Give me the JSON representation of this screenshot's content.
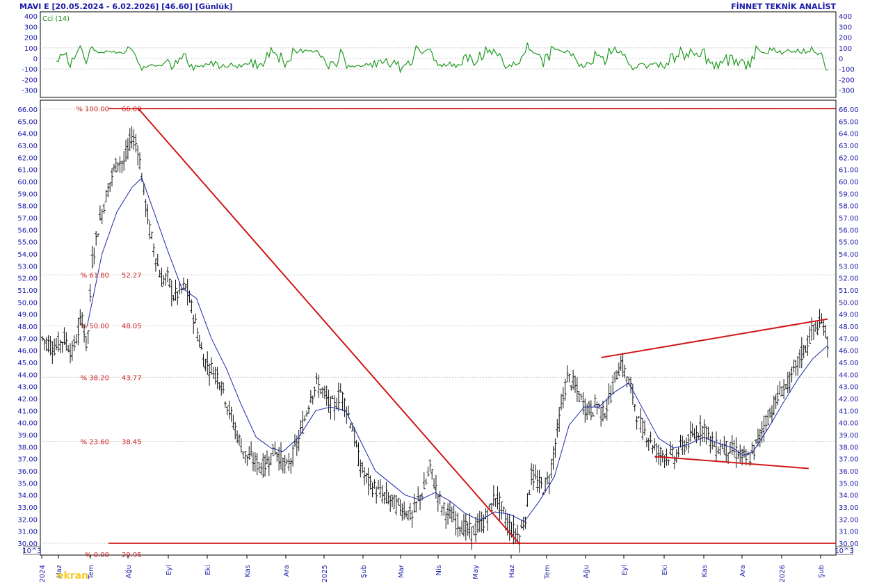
{
  "header": {
    "title": "MAVI  E  [20.05.2024 - 6.02.2026]  [46.60]  [Günlük]",
    "provider": "FİNNET TEKNİK ANALİST"
  },
  "indicator": {
    "name": "Cci (14)",
    "ticks": [
      "400",
      "300",
      "200",
      "100",
      "0",
      "-100",
      "-200",
      "-300"
    ],
    "tick_values": [
      400,
      300,
      200,
      100,
      0,
      -100,
      -200,
      -300
    ],
    "range": [
      -380,
      410
    ]
  },
  "scale_note": "10^3",
  "price_ticks": [
    "66.00",
    "65.00",
    "64.00",
    "63.00",
    "62.00",
    "61.00",
    "60.00",
    "59.00",
    "58.00",
    "57.00",
    "56.00",
    "55.00",
    "54.00",
    "53.00",
    "52.00",
    "51.00",
    "50.00",
    "49.00",
    "48.00",
    "47.00",
    "46.00",
    "45.00",
    "44.00",
    "43.00",
    "42.00",
    "41.00",
    "40.00",
    "39.00",
    "38.00",
    "37.00",
    "36.00",
    "35.00",
    "34.00",
    "33.00",
    "32.00",
    "31.00",
    "30.00"
  ],
  "x_labels": [
    "2024",
    "Haz",
    "Tem",
    "Ağu",
    "Eyl",
    "Eki",
    "Kas",
    "Ara",
    "2025",
    "Şub",
    "Mar",
    "Nis",
    "May",
    "Haz",
    "Tem",
    "Ağu",
    "Eyl",
    "Eki",
    "Kas",
    "Ara",
    "2026",
    "Şub"
  ],
  "fibonacci": [
    {
      "pct": "% 100.00",
      "value": "66.08",
      "level": 66.08
    },
    {
      "pct": "% 61.80",
      "value": "52.27",
      "level": 52.27
    },
    {
      "pct": "% 50.00",
      "value": "48.05",
      "level": 48.05
    },
    {
      "pct": "% 38.20",
      "value": "43.77",
      "level": 43.77
    },
    {
      "pct": "% 23.60",
      "value": "38.45",
      "level": 38.45
    },
    {
      "pct": "% 0.00",
      "value": "29.95",
      "level": 29.95
    }
  ],
  "watermark": "ekran",
  "colors": {
    "axis_text": "#1a1aa8",
    "cci": "#1f9a1f",
    "price_bars": "#111111",
    "moving_average": "#1a2aa8",
    "trendline": "#d01818",
    "grid": "#b8b8b8"
  },
  "chart_data": {
    "type": "line",
    "title": "MAVI  E  [20.05.2024 - 6.02.2026]  [46.60]  [Günlük]",
    "ylim": [
      29.6,
      66.6
    ],
    "series": [
      {
        "name": "MAVI E",
        "points": [
          [
            0,
            47.0
          ],
          [
            12,
            46.2
          ],
          [
            22,
            47.0
          ],
          [
            30,
            45.8
          ],
          [
            40,
            48.8
          ],
          [
            45,
            46.0
          ],
          [
            50,
            53.5
          ],
          [
            57,
            56.5
          ],
          [
            63,
            58.5
          ],
          [
            70,
            60.5
          ],
          [
            76,
            61.8
          ],
          [
            82,
            61.5
          ],
          [
            90,
            63.8
          ],
          [
            96,
            62.8
          ],
          [
            102,
            59.2
          ],
          [
            108,
            56.0
          ],
          [
            114,
            53.8
          ],
          [
            120,
            51.8
          ],
          [
            126,
            52.0
          ],
          [
            132,
            50.5
          ],
          [
            138,
            50.8
          ],
          [
            144,
            51.3
          ],
          [
            150,
            49.5
          ],
          [
            156,
            47.5
          ],
          [
            162,
            45.3
          ],
          [
            168,
            44.6
          ],
          [
            174,
            44.2
          ],
          [
            180,
            43.3
          ],
          [
            186,
            41.5
          ],
          [
            192,
            40.0
          ],
          [
            198,
            38.5
          ],
          [
            204,
            37.3
          ],
          [
            210,
            37.0
          ],
          [
            216,
            36.6
          ],
          [
            222,
            36.3
          ],
          [
            228,
            37.0
          ],
          [
            234,
            37.8
          ],
          [
            240,
            37.0
          ],
          [
            246,
            36.2
          ],
          [
            252,
            37.3
          ],
          [
            258,
            38.6
          ],
          [
            264,
            40.3
          ],
          [
            270,
            42.3
          ],
          [
            276,
            43.2
          ],
          [
            282,
            42.6
          ],
          [
            288,
            41.6
          ],
          [
            294,
            41.3
          ],
          [
            300,
            42.6
          ],
          [
            306,
            41.2
          ],
          [
            312,
            39.6
          ],
          [
            318,
            37.0
          ],
          [
            324,
            35.6
          ],
          [
            330,
            34.9
          ],
          [
            336,
            34.4
          ],
          [
            342,
            34.0
          ],
          [
            348,
            33.7
          ],
          [
            354,
            33.3
          ],
          [
            360,
            33.0
          ],
          [
            366,
            32.7
          ],
          [
            372,
            32.2
          ],
          [
            378,
            33.6
          ],
          [
            384,
            34.5
          ],
          [
            390,
            36.3
          ],
          [
            396,
            34.5
          ],
          [
            402,
            33.0
          ],
          [
            408,
            32.4
          ],
          [
            414,
            32.0
          ],
          [
            420,
            31.6
          ],
          [
            426,
            31.2
          ],
          [
            432,
            30.9
          ],
          [
            438,
            31.3
          ],
          [
            444,
            31.8
          ],
          [
            450,
            32.7
          ],
          [
            456,
            34.0
          ],
          [
            462,
            32.8
          ],
          [
            468,
            31.6
          ],
          [
            474,
            31.0
          ],
          [
            480,
            30.6
          ],
          [
            486,
            32.3
          ],
          [
            492,
            35.7
          ],
          [
            498,
            35.0
          ],
          [
            504,
            34.6
          ],
          [
            510,
            35.4
          ],
          [
            516,
            38.3
          ],
          [
            522,
            41.2
          ],
          [
            528,
            43.8
          ],
          [
            534,
            43.2
          ],
          [
            540,
            42.2
          ],
          [
            546,
            41.3
          ],
          [
            552,
            41.0
          ],
          [
            558,
            41.6
          ],
          [
            564,
            40.7
          ],
          [
            570,
            41.8
          ],
          [
            576,
            43.6
          ],
          [
            582,
            45.0
          ],
          [
            588,
            43.8
          ],
          [
            594,
            42.3
          ],
          [
            600,
            40.0
          ],
          [
            606,
            39.2
          ],
          [
            612,
            38.6
          ],
          [
            618,
            37.6
          ],
          [
            624,
            37.4
          ],
          [
            630,
            37.3
          ],
          [
            636,
            37.1
          ],
          [
            642,
            37.9
          ],
          [
            648,
            38.3
          ],
          [
            654,
            38.8
          ],
          [
            660,
            39.3
          ],
          [
            666,
            39.7
          ],
          [
            672,
            38.6
          ],
          [
            678,
            37.9
          ],
          [
            684,
            38.1
          ],
          [
            690,
            37.8
          ],
          [
            696,
            37.6
          ],
          [
            702,
            37.4
          ],
          [
            708,
            36.9
          ],
          [
            714,
            37.3
          ],
          [
            720,
            38.6
          ],
          [
            726,
            39.8
          ],
          [
            732,
            40.8
          ],
          [
            738,
            41.7
          ],
          [
            744,
            42.8
          ],
          [
            750,
            43.2
          ],
          [
            756,
            44.1
          ],
          [
            762,
            45.4
          ],
          [
            768,
            46.3
          ],
          [
            774,
            47.5
          ],
          [
            780,
            48.0
          ],
          [
            786,
            48.2
          ],
          [
            790,
            46.6
          ]
        ]
      },
      {
        "name": "MA",
        "points": [
          [
            45,
            48.0
          ],
          [
            60,
            54.0
          ],
          [
            75,
            57.5
          ],
          [
            90,
            59.5
          ],
          [
            100,
            60.3
          ],
          [
            110,
            58.0
          ],
          [
            125,
            54.5
          ],
          [
            140,
            51.2
          ],
          [
            155,
            50.3
          ],
          [
            170,
            47.0
          ],
          [
            185,
            44.5
          ],
          [
            200,
            41.5
          ],
          [
            215,
            38.8
          ],
          [
            230,
            37.9
          ],
          [
            242,
            37.6
          ],
          [
            258,
            38.8
          ],
          [
            275,
            41.0
          ],
          [
            290,
            41.3
          ],
          [
            305,
            41.0
          ],
          [
            320,
            38.5
          ],
          [
            335,
            36.0
          ],
          [
            350,
            35.0
          ],
          [
            365,
            34.0
          ],
          [
            380,
            33.6
          ],
          [
            395,
            34.2
          ],
          [
            410,
            33.5
          ],
          [
            425,
            32.5
          ],
          [
            440,
            31.9
          ],
          [
            455,
            32.6
          ],
          [
            470,
            32.4
          ],
          [
            485,
            31.8
          ],
          [
            500,
            33.5
          ],
          [
            515,
            35.5
          ],
          [
            530,
            39.8
          ],
          [
            545,
            41.3
          ],
          [
            560,
            41.3
          ],
          [
            575,
            42.5
          ],
          [
            590,
            43.3
          ],
          [
            605,
            41.0
          ],
          [
            620,
            38.7
          ],
          [
            635,
            37.9
          ],
          [
            650,
            38.2
          ],
          [
            665,
            38.8
          ],
          [
            680,
            38.3
          ],
          [
            695,
            37.9
          ],
          [
            705,
            37.3
          ],
          [
            715,
            37.6
          ],
          [
            730,
            39.5
          ],
          [
            745,
            41.6
          ],
          [
            760,
            43.6
          ],
          [
            775,
            45.3
          ],
          [
            790,
            46.4
          ]
        ]
      }
    ]
  }
}
